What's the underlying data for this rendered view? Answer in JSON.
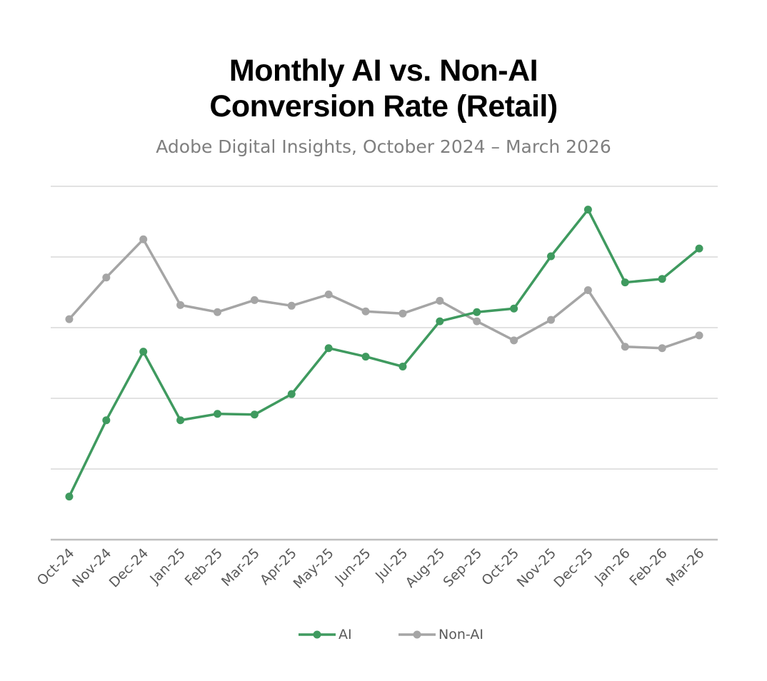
{
  "header": {
    "title_line1": "Monthly AI vs. Non-AI",
    "title_line2": "Conversion Rate (Retail)",
    "subtitle": "Adobe Digital Insights, October 2024 – March 2026"
  },
  "legend": {
    "items": [
      {
        "label": "AI",
        "color": "#3f9a5f"
      },
      {
        "label": "Non-AI",
        "color": "#a5a5a5"
      }
    ]
  },
  "colors": {
    "ai": "#3f9a5f",
    "non_ai": "#a5a5a5",
    "gridline": "#d9d9d9",
    "axis": "#bfbfbf",
    "tick_label": "#595959"
  },
  "chart_data": {
    "type": "line",
    "title": "Monthly AI vs. Non-AI Conversion Rate (Retail)",
    "subtitle": "Adobe Digital Insights, October 2024 – March 2026",
    "xlabel": "",
    "ylabel": "",
    "y_axis_labels_shown": false,
    "y_units": "relative (gridline units; no y-axis tick labels shown)",
    "ylim": [
      0,
      5
    ],
    "y_gridlines": [
      1,
      2,
      3,
      4,
      5
    ],
    "grid": true,
    "legend_position": "bottom",
    "categories": [
      "Oct-24",
      "Nov-24",
      "Dec-24",
      "Jan-25",
      "Feb-25",
      "Mar-25",
      "Apr-25",
      "May-25",
      "Jun-25",
      "Jul-25",
      "Aug-25",
      "Sep-25",
      "Oct-25",
      "Nov-25",
      "Dec-25",
      "Jan-26",
      "Feb-26",
      "Mar-26"
    ],
    "series": [
      {
        "name": "AI",
        "color": "#3f9a5f",
        "values": [
          0.61,
          1.69,
          2.66,
          1.69,
          1.78,
          1.77,
          2.06,
          2.71,
          2.59,
          2.45,
          3.09,
          3.22,
          3.27,
          4.01,
          4.67,
          3.64,
          3.69,
          4.12
        ]
      },
      {
        "name": "Non-AI",
        "color": "#a5a5a5",
        "values": [
          3.12,
          3.71,
          4.25,
          3.32,
          3.22,
          3.39,
          3.31,
          3.47,
          3.23,
          3.2,
          3.38,
          3.09,
          2.82,
          3.11,
          3.53,
          2.73,
          2.71,
          2.89
        ]
      }
    ]
  }
}
